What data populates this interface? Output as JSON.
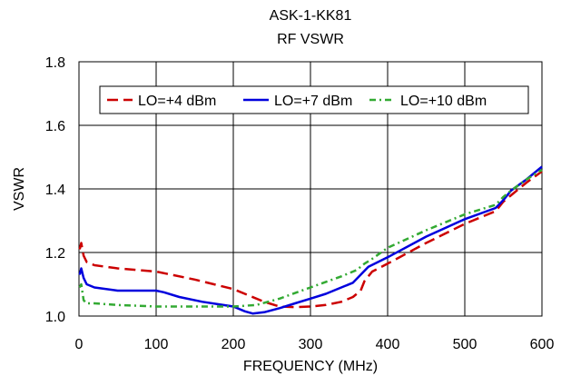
{
  "chart_data": {
    "type": "line",
    "title": "ASK-1-KK81",
    "subtitle": "RF VSWR",
    "xlabel": "FREQUENCY (MHz)",
    "ylabel": "VSWR",
    "xlim": [
      0,
      600
    ],
    "ylim": [
      1.0,
      1.8
    ],
    "xticks": [
      0,
      100,
      200,
      300,
      400,
      500,
      600
    ],
    "xtick_labels": [
      "0",
      "100",
      "200",
      "300",
      "400",
      "500",
      "600"
    ],
    "yticks": [
      1.0,
      1.2,
      1.4,
      1.6,
      1.8
    ],
    "ytick_labels": [
      "1.0",
      "1.2",
      "1.4",
      "1.6",
      "1.8"
    ],
    "grid": true,
    "legend_position": "top",
    "series": [
      {
        "name": "LO=+4 dBm",
        "color": "#cc0000",
        "style": "dashed",
        "x": [
          1,
          3,
          6,
          10,
          20,
          50,
          100,
          150,
          200,
          220,
          240,
          260,
          280,
          300,
          320,
          340,
          355,
          365,
          370,
          380,
          400,
          450,
          500,
          540,
          550,
          560,
          580,
          600
        ],
        "y": [
          1.21,
          1.23,
          1.19,
          1.17,
          1.16,
          1.15,
          1.14,
          1.115,
          1.085,
          1.065,
          1.045,
          1.03,
          1.028,
          1.03,
          1.035,
          1.045,
          1.06,
          1.08,
          1.11,
          1.14,
          1.165,
          1.23,
          1.29,
          1.33,
          1.36,
          1.38,
          1.42,
          1.455
        ]
      },
      {
        "name": "LO=+7 dBm",
        "color": "#0000dd",
        "style": "solid",
        "x": [
          1,
          3,
          6,
          10,
          20,
          50,
          100,
          110,
          130,
          160,
          200,
          215,
          225,
          240,
          260,
          280,
          300,
          320,
          340,
          355,
          365,
          375,
          400,
          450,
          500,
          540,
          550,
          560,
          580,
          600
        ],
        "y": [
          1.13,
          1.15,
          1.12,
          1.1,
          1.09,
          1.08,
          1.08,
          1.075,
          1.06,
          1.045,
          1.03,
          1.015,
          1.008,
          1.012,
          1.025,
          1.04,
          1.055,
          1.07,
          1.09,
          1.105,
          1.13,
          1.155,
          1.185,
          1.25,
          1.305,
          1.34,
          1.365,
          1.395,
          1.43,
          1.47
        ]
      },
      {
        "name": "LO=+10 dBm",
        "color": "#33aa33",
        "style": "dashdot",
        "x": [
          1,
          3,
          6,
          10,
          20,
          50,
          100,
          150,
          200,
          230,
          260,
          300,
          340,
          360,
          370,
          380,
          400,
          450,
          500,
          540,
          550,
          560,
          580,
          600
        ],
        "y": [
          1.09,
          1.1,
          1.05,
          1.04,
          1.04,
          1.035,
          1.03,
          1.03,
          1.03,
          1.035,
          1.055,
          1.09,
          1.125,
          1.145,
          1.165,
          1.18,
          1.215,
          1.27,
          1.32,
          1.35,
          1.375,
          1.395,
          1.43,
          1.46
        ]
      }
    ]
  }
}
